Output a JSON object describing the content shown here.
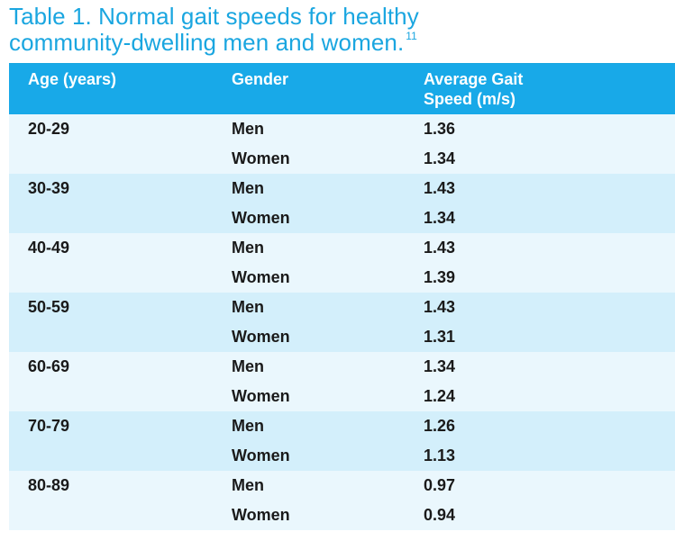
{
  "title": {
    "line1": "Table 1. Normal gait speeds for healthy",
    "line2": "community-dwelling men and women.",
    "ref": "11"
  },
  "columns": [
    "Age (years)",
    "Gender",
    "Average Gait",
    "Speed (m/s)"
  ],
  "groups": [
    {
      "age": "20-29",
      "rows": [
        {
          "gender": "Men",
          "speed": "1.36"
        },
        {
          "gender": "Women",
          "speed": "1.34"
        }
      ]
    },
    {
      "age": "30-39",
      "rows": [
        {
          "gender": "Men",
          "speed": "1.43"
        },
        {
          "gender": "Women",
          "speed": "1.34"
        }
      ]
    },
    {
      "age": "40-49",
      "rows": [
        {
          "gender": "Men",
          "speed": "1.43"
        },
        {
          "gender": "Women",
          "speed": "1.39"
        }
      ]
    },
    {
      "age": "50-59",
      "rows": [
        {
          "gender": "Men",
          "speed": "1.43"
        },
        {
          "gender": "Women",
          "speed": "1.31"
        }
      ]
    },
    {
      "age": "60-69",
      "rows": [
        {
          "gender": "Men",
          "speed": "1.34"
        },
        {
          "gender": "Women",
          "speed": "1.24"
        }
      ]
    },
    {
      "age": "70-79",
      "rows": [
        {
          "gender": "Men",
          "speed": "1.26"
        },
        {
          "gender": "Women",
          "speed": "1.13"
        }
      ]
    },
    {
      "age": "80-89",
      "rows": [
        {
          "gender": "Men",
          "speed": "0.97"
        },
        {
          "gender": "Women",
          "speed": "0.94"
        }
      ]
    }
  ],
  "colors": {
    "accent": "#1aa6e0",
    "header_bg": "#18a9e8",
    "row_light": "#eaf7fd",
    "row_dark": "#d3effb"
  }
}
